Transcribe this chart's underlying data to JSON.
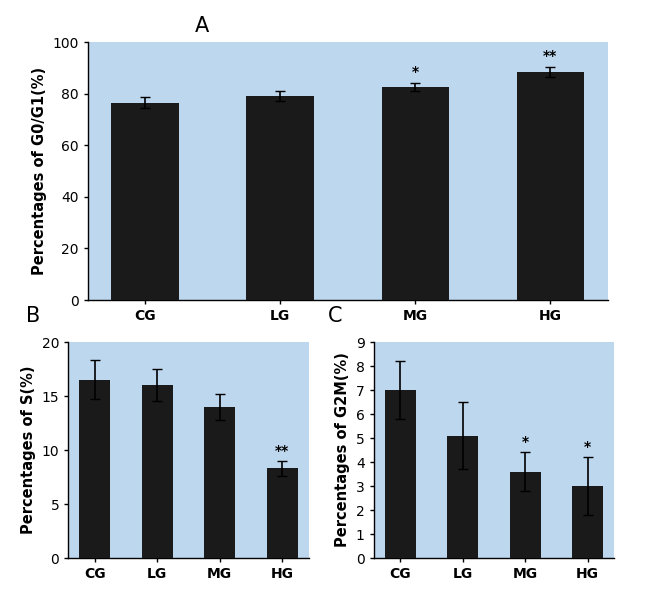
{
  "panel_A": {
    "label": "A",
    "categories": [
      "CG",
      "LG",
      "MG",
      "HG"
    ],
    "values": [
      76.5,
      79.0,
      82.5,
      88.5
    ],
    "errors": [
      2.0,
      2.0,
      1.5,
      2.0
    ],
    "ylabel": "Percentages of G0/G1(%)",
    "ylim": [
      0,
      100
    ],
    "yticks": [
      0,
      20,
      40,
      60,
      80,
      100
    ],
    "significance": [
      "",
      "",
      "*",
      "**"
    ]
  },
  "panel_B": {
    "label": "B",
    "categories": [
      "CG",
      "LG",
      "MG",
      "HG"
    ],
    "values": [
      16.5,
      16.0,
      14.0,
      8.3
    ],
    "errors": [
      1.8,
      1.5,
      1.2,
      0.7
    ],
    "ylabel": "Percentages of S(%)",
    "ylim": [
      0,
      20
    ],
    "yticks": [
      0,
      5,
      10,
      15,
      20
    ],
    "significance": [
      "",
      "",
      "",
      "**"
    ]
  },
  "panel_C": {
    "label": "C",
    "categories": [
      "CG",
      "LG",
      "MG",
      "HG"
    ],
    "values": [
      7.0,
      5.1,
      3.6,
      3.0
    ],
    "errors": [
      1.2,
      1.4,
      0.8,
      1.2
    ],
    "ylabel": "Percentages of G2M(%)",
    "ylim": [
      0,
      9
    ],
    "yticks": [
      0,
      1,
      2,
      3,
      4,
      5,
      6,
      7,
      8,
      9
    ],
    "significance": [
      "",
      "",
      "*",
      "*"
    ]
  },
  "bar_color": "#1a1a1a",
  "bg_color": "#bdd7ee",
  "tick_fontsize": 10,
  "ylabel_fontsize": 10.5,
  "panel_label_fontsize": 15
}
